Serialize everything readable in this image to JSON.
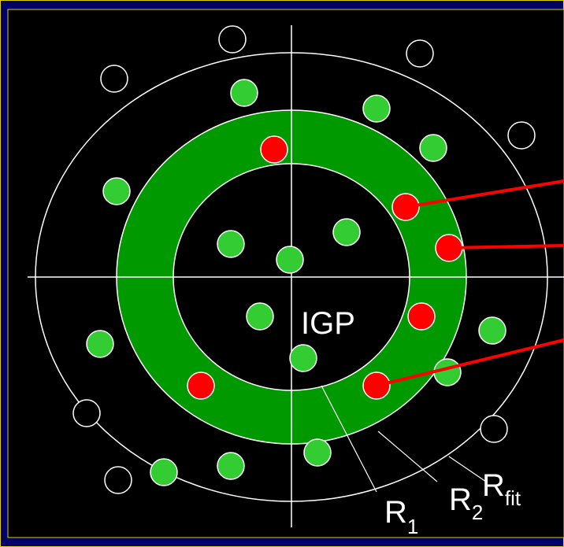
{
  "center_label": "IGP",
  "radius_labels": [
    {
      "symbol": "R",
      "subscript": "1"
    },
    {
      "symbol": "R",
      "subscript": "2"
    },
    {
      "symbol": "R",
      "subscript": "fit"
    }
  ]
}
